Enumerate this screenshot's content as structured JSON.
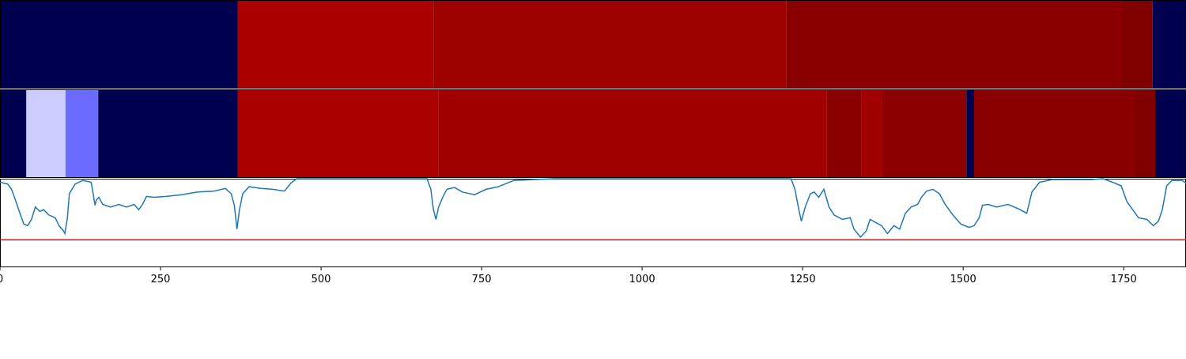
{
  "chart_data": {
    "type": "timeline",
    "xlim": [
      0,
      1847
    ],
    "xticks": [
      0,
      250,
      500,
      750,
      1000,
      1250,
      1500,
      1750
    ],
    "rows": [
      {
        "segments": [
          {
            "start": 0,
            "end": 370,
            "color": "#000050"
          },
          {
            "start": 370,
            "end": 675,
            "color": "#aa0000"
          },
          {
            "start": 675,
            "end": 1225,
            "color": "#9f0000"
          },
          {
            "start": 1225,
            "end": 1746,
            "color": "#8a0000"
          },
          {
            "start": 1746,
            "end": 1795,
            "color": "#800000"
          },
          {
            "start": 1795,
            "end": 1847,
            "color": "#000050"
          }
        ]
      },
      {
        "segments": [
          {
            "start": 0,
            "end": 41,
            "color": "#000050"
          },
          {
            "start": 41,
            "end": 102,
            "color": "#ccccff"
          },
          {
            "start": 102,
            "end": 153,
            "color": "#6b6bff"
          },
          {
            "start": 153,
            "end": 370,
            "color": "#000050"
          },
          {
            "start": 370,
            "end": 683,
            "color": "#aa0000"
          },
          {
            "start": 683,
            "end": 1287,
            "color": "#a00000"
          },
          {
            "start": 1287,
            "end": 1342,
            "color": "#8a0000"
          },
          {
            "start": 1342,
            "end": 1373,
            "color": "#a00000"
          },
          {
            "start": 1373,
            "end": 1505,
            "color": "#8c0000"
          },
          {
            "start": 1505,
            "end": 1517,
            "color": "#000050"
          },
          {
            "start": 1517,
            "end": 1767,
            "color": "#8a0000"
          },
          {
            "start": 1767,
            "end": 1799,
            "color": "#800000"
          },
          {
            "start": 1799,
            "end": 1847,
            "color": "#000050"
          }
        ]
      }
    ],
    "line": {
      "color": "#1f77b4",
      "ylim": [
        0,
        1
      ],
      "x": [
        0,
        12,
        18,
        25,
        31,
        37,
        43,
        49,
        55,
        62,
        68,
        76,
        86,
        92,
        99,
        101,
        105,
        108,
        117,
        129,
        142,
        145,
        148,
        150,
        154,
        160,
        172,
        185,
        197,
        209,
        216,
        222,
        228,
        240,
        259,
        283,
        308,
        333,
        351,
        360,
        365,
        369,
        373,
        378,
        388,
        406,
        425,
        443,
        453,
        462,
        493,
        665,
        671,
        675,
        679,
        683,
        690,
        696,
        708,
        720,
        739,
        757,
        776,
        800,
        862,
        1232,
        1238,
        1244,
        1248,
        1254,
        1262,
        1268,
        1275,
        1283,
        1291,
        1299,
        1312,
        1324,
        1330,
        1340,
        1349,
        1355,
        1365,
        1373,
        1382,
        1392,
        1401,
        1410,
        1419,
        1429,
        1435,
        1443,
        1453,
        1463,
        1472,
        1484,
        1496,
        1509,
        1517,
        1525,
        1530,
        1539,
        1552,
        1570,
        1589,
        1599,
        1607,
        1619,
        1638,
        1700,
        1718,
        1736,
        1746,
        1755,
        1764,
        1773,
        1786,
        1796,
        1804,
        1810,
        1817,
        1825,
        1841,
        1847
      ],
      "values": [
        0.96,
        0.94,
        0.88,
        0.74,
        0.61,
        0.49,
        0.47,
        0.54,
        0.68,
        0.63,
        0.65,
        0.59,
        0.56,
        0.47,
        0.41,
        0.38,
        0.56,
        0.83,
        0.94,
        0.98,
        0.96,
        0.83,
        0.7,
        0.76,
        0.79,
        0.71,
        0.68,
        0.71,
        0.68,
        0.71,
        0.65,
        0.71,
        0.8,
        0.79,
        0.8,
        0.82,
        0.85,
        0.86,
        0.89,
        0.83,
        0.7,
        0.43,
        0.65,
        0.83,
        0.91,
        0.89,
        0.88,
        0.86,
        0.95,
        1,
        1,
        1,
        0.88,
        0.65,
        0.54,
        0.68,
        0.8,
        0.88,
        0.9,
        0.85,
        0.82,
        0.88,
        0.91,
        0.98,
        1,
        1,
        0.88,
        0.65,
        0.52,
        0.68,
        0.83,
        0.85,
        0.79,
        0.88,
        0.68,
        0.59,
        0.54,
        0.56,
        0.43,
        0.34,
        0.41,
        0.54,
        0.5,
        0.47,
        0.38,
        0.47,
        0.43,
        0.61,
        0.68,
        0.71,
        0.79,
        0.86,
        0.88,
        0.83,
        0.71,
        0.59,
        0.49,
        0.45,
        0.47,
        0.56,
        0.7,
        0.71,
        0.68,
        0.71,
        0.65,
        0.61,
        0.85,
        0.96,
        0.99,
        0.99,
        1,
        0.95,
        0.92,
        0.74,
        0.65,
        0.56,
        0.54,
        0.47,
        0.52,
        0.65,
        0.92,
        0.98,
        0.98,
        0.95
      ]
    },
    "threshold": {
      "value": 0.31,
      "color": "#ff0000"
    }
  }
}
